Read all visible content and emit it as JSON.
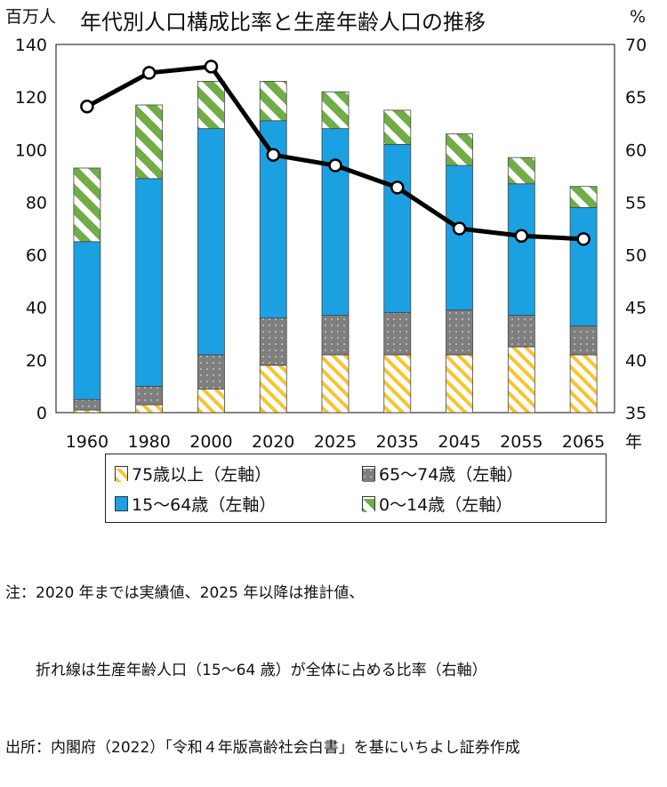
{
  "chart_data": {
    "type": "bar",
    "stacked": true,
    "title": "年代別人口構成比率と生産年齢人口の推移",
    "y_left_unit": "百万人",
    "y_right_unit": "%",
    "x_unit": "年",
    "y_left_ticks": [
      "0",
      "20",
      "40",
      "60",
      "80",
      "100",
      "120",
      "140"
    ],
    "y_right_ticks": [
      "35",
      "40",
      "45",
      "50",
      "55",
      "60",
      "65",
      "70"
    ],
    "ylim_left": [
      0,
      140
    ],
    "ylim_right": [
      35,
      70
    ],
    "categories": [
      "1960",
      "1980",
      "2000",
      "2020",
      "2025",
      "2035",
      "2045",
      "2055",
      "2065"
    ],
    "series": [
      {
        "name": "75歳以上（左軸）",
        "color": "#F7C531",
        "pattern": "diagonal-stripes",
        "values": [
          1,
          3,
          9,
          18,
          22,
          22,
          22,
          25,
          22
        ]
      },
      {
        "name": "65～74歳（左軸）",
        "color": "#7F7F7F",
        "pattern": "dots",
        "values": [
          4,
          7,
          13,
          18,
          15,
          16,
          17,
          12,
          11
        ]
      },
      {
        "name": "15～64歳（左軸）",
        "color": "#1BA1E2",
        "pattern": "solid",
        "values": [
          60,
          79,
          86,
          75,
          71,
          64,
          55,
          50,
          45
        ]
      },
      {
        "name": "0～14歳（左軸）",
        "color": "#70AD47",
        "pattern": "wide-diagonal",
        "values": [
          28,
          28,
          18,
          15,
          14,
          13,
          12,
          10,
          8
        ]
      }
    ],
    "line": {
      "axis": "right",
      "color": "#000000",
      "values": [
        64.1,
        67.3,
        67.9,
        59.5,
        58.5,
        56.4,
        52.5,
        51.8,
        51.5
      ]
    },
    "grid": false
  },
  "legend": [
    {
      "label": "75歳以上（左軸）",
      "series": 0
    },
    {
      "label": "65～74歳（左軸）",
      "series": 1
    },
    {
      "label": "15～64歳（左軸）",
      "series": 2
    },
    {
      "label": "0～14歳（左軸）",
      "series": 3
    }
  ],
  "notes": {
    "line1": "注：2020 年までは実績値、2025 年以降は推計値、",
    "line2": "　　折れ線は生産年齢人口（15～64 歳）が全体に占める比率（右軸）",
    "line3": "出所：内閣府（2022）「令和４年版高齢社会白書」を基にいちよし証券作成"
  }
}
